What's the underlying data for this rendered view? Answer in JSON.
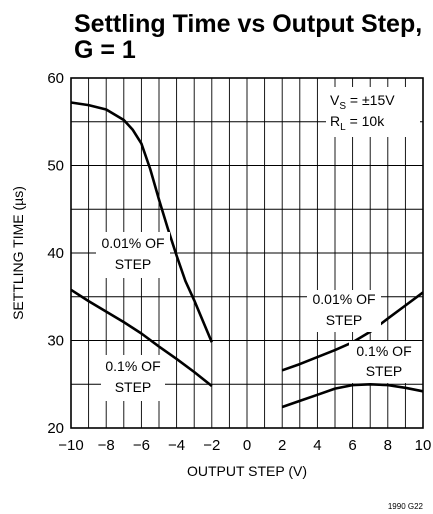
{
  "chart_data": {
    "type": "line",
    "title": "Settling Time vs Output Step,",
    "subtitle": "G = 1",
    "xlabel": "OUTPUT STEP (V)",
    "ylabel": "SETTLING TIME (µs)",
    "xlim": [
      -10,
      10
    ],
    "ylim": [
      20,
      60
    ],
    "xticks": [
      "−10",
      "−8",
      "−6",
      "−4",
      "−2",
      "0",
      "2",
      "4",
      "6",
      "8",
      "10"
    ],
    "yticks": [
      "60",
      "50",
      "40",
      "30",
      "20"
    ],
    "grid": true,
    "conditions": {
      "vs_main": "V",
      "vs_sub": "S",
      "vs_rest": " = ±15V",
      "rl_main": "R",
      "rl_sub": "L",
      "rl_rest": " = 10k"
    },
    "series": [
      {
        "name": "0.01% OF STEP",
        "x": [
          -10,
          -9,
          -8,
          -7,
          -6.5,
          -6,
          -5.5,
          -5,
          -4.5,
          -4,
          -3.5,
          -3,
          -2.5,
          -2
        ],
        "y": [
          57.2,
          56.9,
          56.4,
          55.2,
          54.1,
          52.5,
          49.6,
          46.1,
          42.8,
          39.7,
          36.8,
          34.6,
          32.2,
          29.8
        ]
      },
      {
        "name": "0.1% OF STEP",
        "x": [
          -10,
          -9,
          -8,
          -7,
          -6,
          -5,
          -4,
          -3,
          -2
        ],
        "y": [
          35.8,
          34.5,
          33.3,
          32.1,
          30.8,
          29.3,
          27.9,
          26.4,
          24.8
        ]
      },
      {
        "name": "0.01% OF STEP",
        "x": [
          2,
          3,
          4,
          5,
          6,
          7,
          8,
          9,
          10
        ],
        "y": [
          26.6,
          27.3,
          28.1,
          28.9,
          29.8,
          31.0,
          32.5,
          34.0,
          35.5
        ]
      },
      {
        "name": "0.1% OF STEP",
        "x": [
          2,
          3,
          4,
          5,
          6,
          7,
          8,
          9,
          10
        ],
        "y": [
          22.4,
          23.1,
          23.8,
          24.5,
          24.9,
          25.0,
          24.9,
          24.6,
          24.2
        ]
      }
    ],
    "labels": [
      {
        "line1": "0.01% OF",
        "line2": "STEP"
      },
      {
        "line1": "0.1% OF",
        "line2": "STEP"
      },
      {
        "line1": "0.01% OF",
        "line2": "STEP"
      },
      {
        "line1": "0.1% OF",
        "line2": "STEP"
      }
    ],
    "figure_ref": "1990 G22"
  }
}
